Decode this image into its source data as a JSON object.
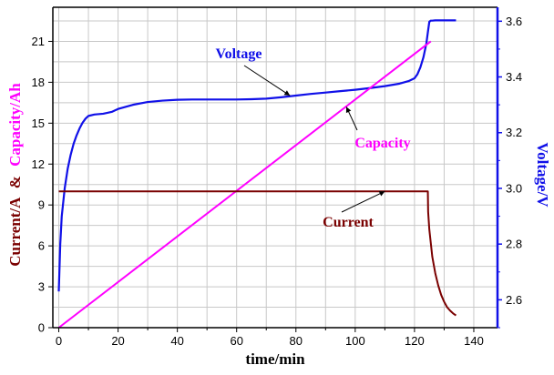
{
  "chart_data": {
    "type": "line",
    "xlabel": "time/min",
    "ylabel_left_parts": [
      "Current/A",
      "&",
      "Capacity/Ah"
    ],
    "ylabel_right": "Voltage/V",
    "xlim": [
      -2,
      148
    ],
    "ylim_left": [
      0,
      23.5
    ],
    "ylim_right": [
      2.5,
      3.65
    ],
    "x_ticks": [
      0,
      20,
      40,
      60,
      80,
      100,
      120,
      140
    ],
    "y_left_ticks": [
      0,
      3,
      6,
      9,
      12,
      15,
      18,
      21
    ],
    "y_right_ticks": [
      2.6,
      2.8,
      3.0,
      3.2,
      3.4,
      3.6
    ],
    "grid": true,
    "colors": {
      "voltage": "#1010e8",
      "capacity": "#ff00ff",
      "current": "#7a0000",
      "left_axis_current": "#7a0000",
      "left_axis_capacity": "#ff00ff",
      "right_axis": "#1010e8"
    },
    "series": [
      {
        "name": "Voltage",
        "axis": "right",
        "x": [
          0,
          0.5,
          1,
          2,
          3,
          4,
          5,
          6,
          7,
          8,
          9,
          10,
          12,
          15,
          18,
          20,
          25,
          30,
          35,
          40,
          45,
          50,
          55,
          60,
          65,
          70,
          75,
          80,
          85,
          90,
          95,
          100,
          105,
          110,
          115,
          118,
          120,
          121,
          122,
          123,
          124,
          124.5,
          125,
          125.5,
          126,
          127,
          128,
          130,
          132,
          134
        ],
        "values": [
          2.63,
          2.8,
          2.9,
          3.0,
          3.07,
          3.12,
          3.16,
          3.19,
          3.215,
          3.235,
          3.25,
          3.26,
          3.265,
          3.268,
          3.275,
          3.285,
          3.3,
          3.31,
          3.315,
          3.318,
          3.319,
          3.319,
          3.319,
          3.319,
          3.32,
          3.322,
          3.327,
          3.333,
          3.339,
          3.344,
          3.349,
          3.354,
          3.36,
          3.367,
          3.376,
          3.385,
          3.395,
          3.41,
          3.435,
          3.47,
          3.52,
          3.56,
          3.598,
          3.602,
          3.602,
          3.603,
          3.603,
          3.603,
          3.603,
          3.603
        ]
      },
      {
        "name": "Capacity",
        "axis": "left",
        "x": [
          0,
          125.5
        ],
        "values": [
          0,
          21
        ]
      },
      {
        "name": "Current",
        "axis": "left",
        "x": [
          0,
          124.5,
          124.6,
          125,
          125.5,
          126,
          127,
          128,
          129,
          130,
          131,
          132,
          133,
          134
        ],
        "values": [
          10,
          10,
          8.5,
          7.2,
          6.2,
          5.2,
          4.0,
          3.1,
          2.4,
          1.9,
          1.5,
          1.25,
          1.05,
          0.9
        ]
      }
    ]
  }
}
